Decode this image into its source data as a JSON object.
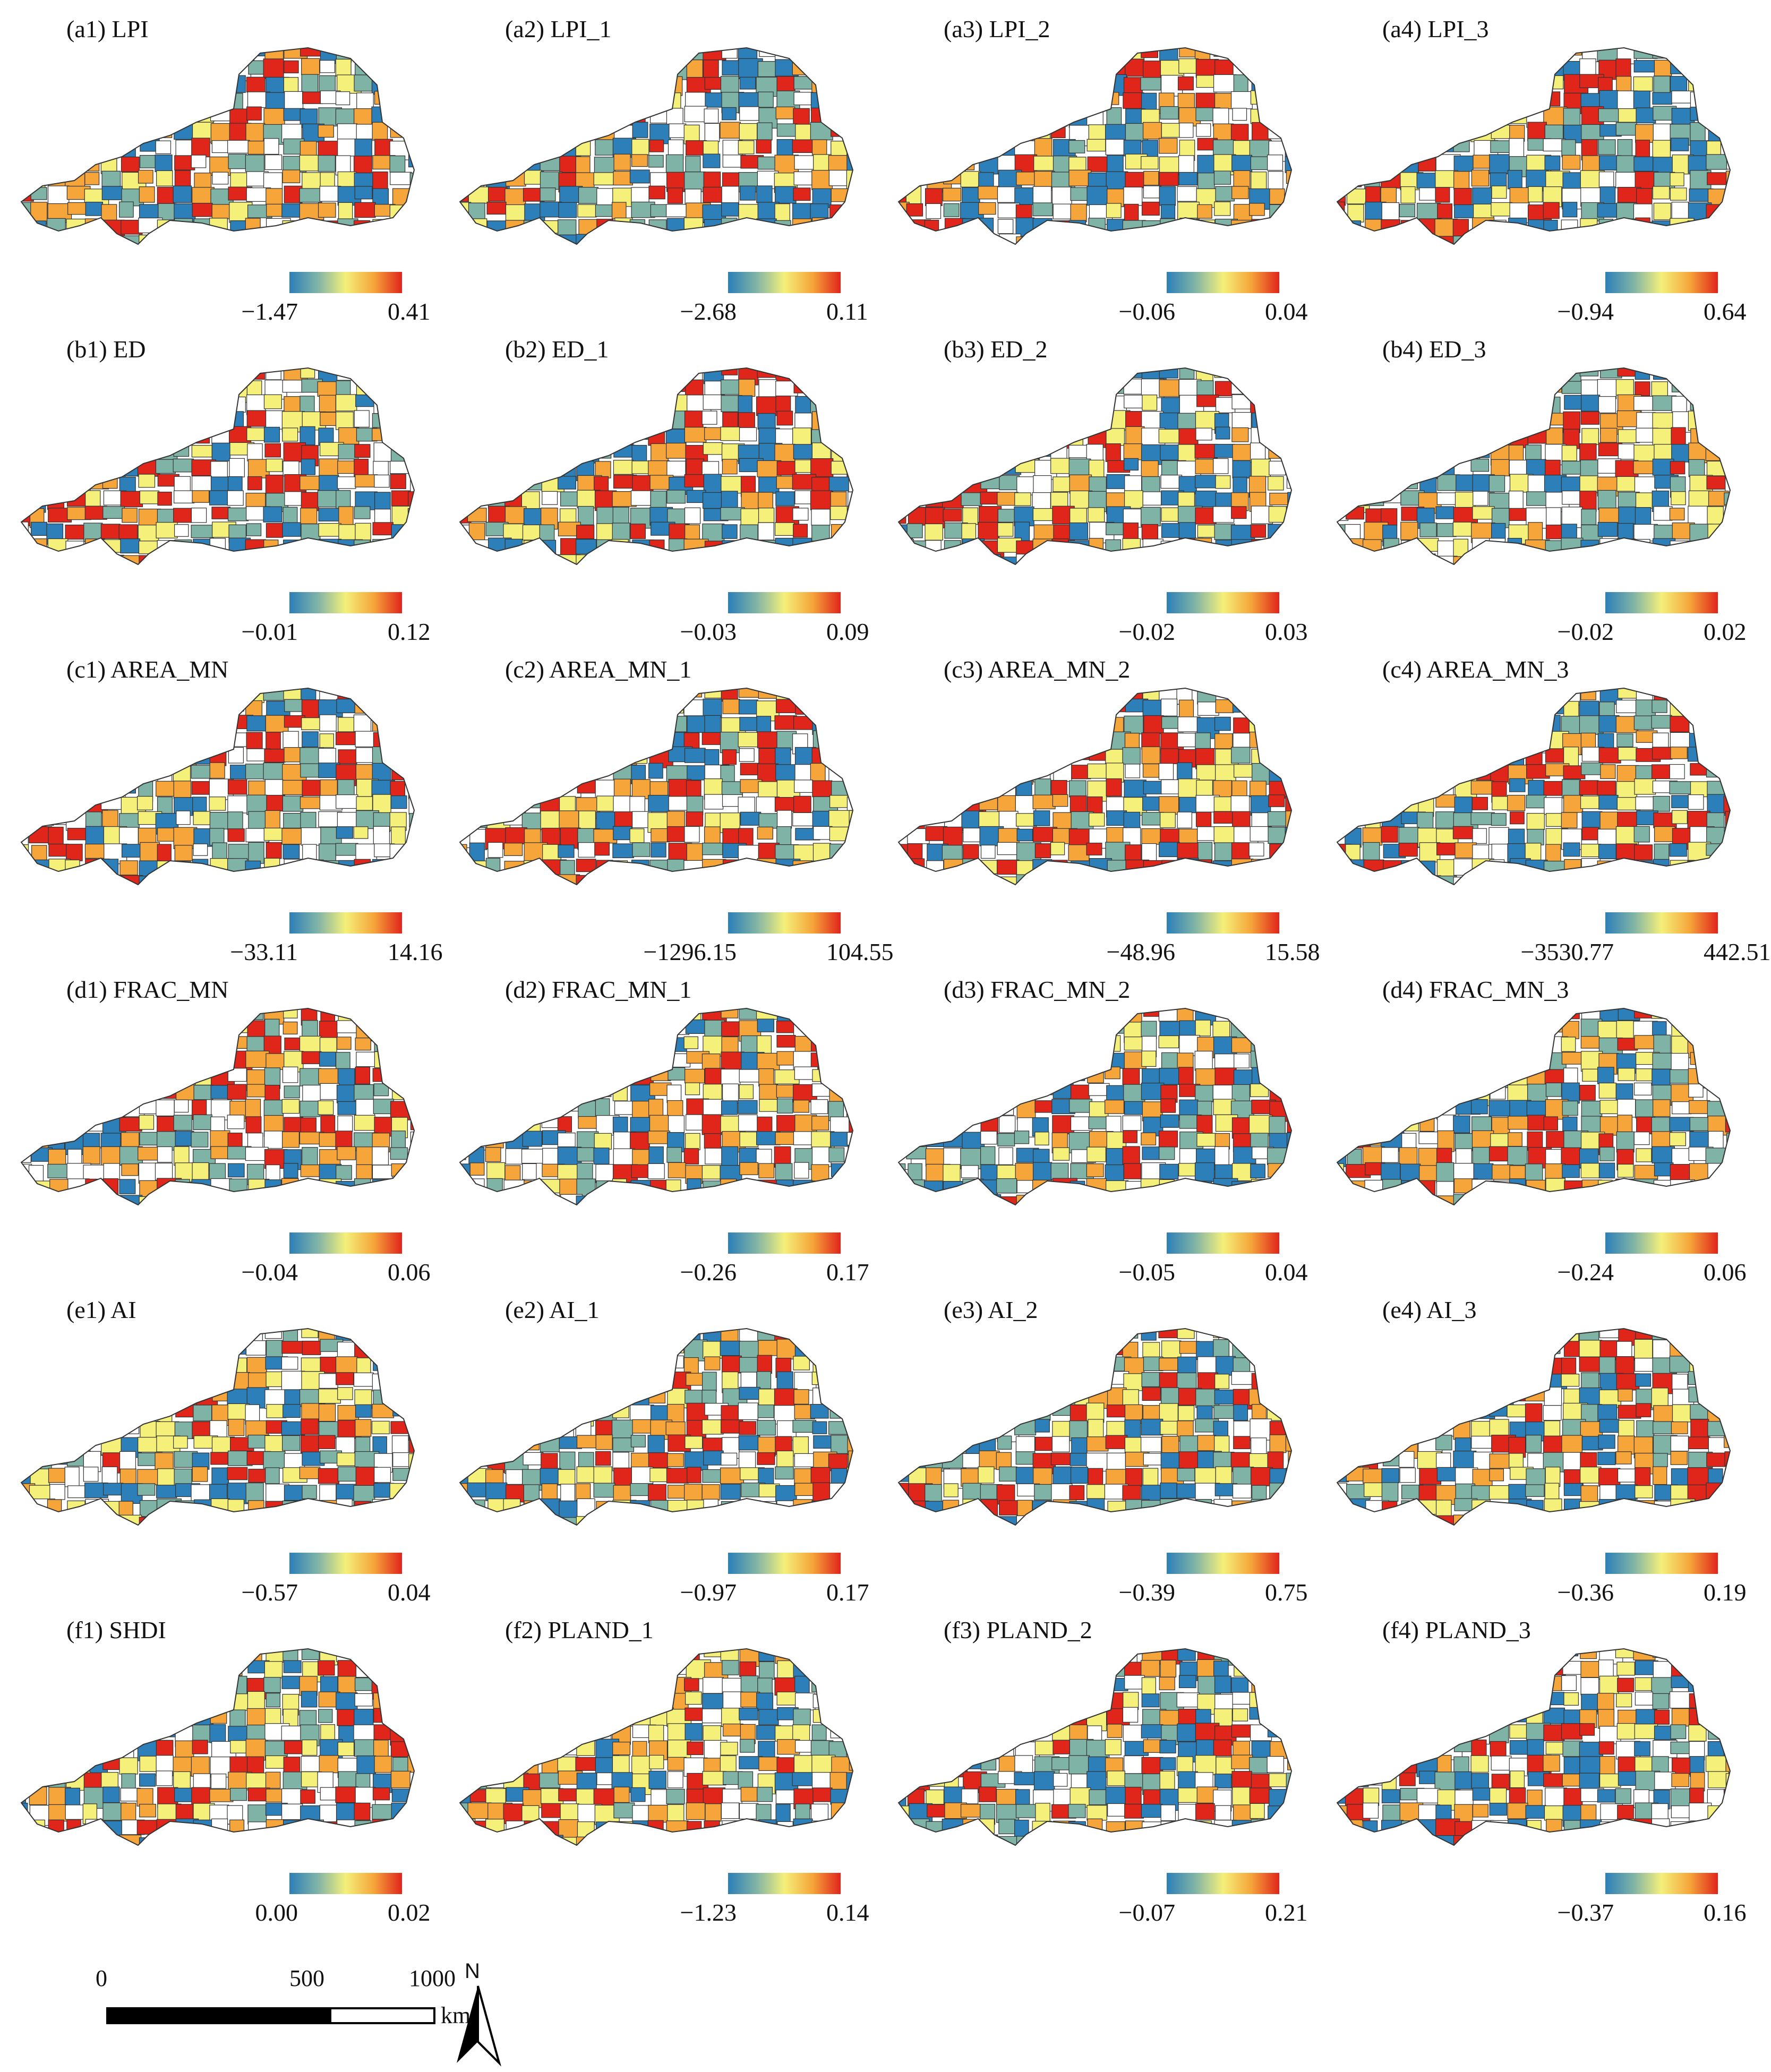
{
  "panels": [
    {
      "title": "(a1) LPI",
      "min": "−1.47",
      "max": "0.41"
    },
    {
      "title": "(a2) LPI_1",
      "min": "−2.68",
      "max": "0.11"
    },
    {
      "title": "(a3) LPI_2",
      "min": "−0.06",
      "max": "0.04"
    },
    {
      "title": "(a4) LPI_3",
      "min": "−0.94",
      "max": "0.64"
    },
    {
      "title": "(b1) ED",
      "min": "−0.01",
      "max": "0.12"
    },
    {
      "title": "(b2) ED_1",
      "min": "−0.03",
      "max": "0.09"
    },
    {
      "title": "(b3) ED_2",
      "min": "−0.02",
      "max": "0.03"
    },
    {
      "title": "(b4) ED_3",
      "min": "−0.02",
      "max": "0.02"
    },
    {
      "title": "(c1) AREA_MN",
      "min": "−33.11",
      "max": "14.16"
    },
    {
      "title": "(c2) AREA_MN_1",
      "min": "−1296.15",
      "max": "104.55"
    },
    {
      "title": "(c3) AREA_MN_2",
      "min": "−48.96",
      "max": "15.58"
    },
    {
      "title": "(c4) AREA_MN_3",
      "min": "−3530.77",
      "max": "442.51"
    },
    {
      "title": "(d1) FRAC_MN",
      "min": "−0.04",
      "max": "0.06"
    },
    {
      "title": "(d2) FRAC_MN_1",
      "min": "−0.26",
      "max": "0.17"
    },
    {
      "title": "(d3) FRAC_MN_2",
      "min": "−0.05",
      "max": "0.04"
    },
    {
      "title": "(d4) FRAC_MN_3",
      "min": "−0.24",
      "max": "0.06"
    },
    {
      "title": "(e1) AI",
      "min": "−0.57",
      "max": "0.04"
    },
    {
      "title": "(e2) AI_1",
      "min": "−0.97",
      "max": "0.17"
    },
    {
      "title": "(e3) AI_2",
      "min": "−0.39",
      "max": "0.75"
    },
    {
      "title": "(e4) AI_3",
      "min": "−0.36",
      "max": "0.19"
    },
    {
      "title": "(f1) SHDI",
      "min": "0.00",
      "max": "0.02"
    },
    {
      "title": "(f2) PLAND_1",
      "min": "−1.23",
      "max": "0.14"
    },
    {
      "title": "(f3) PLAND_2",
      "min": "−0.07",
      "max": "0.21"
    },
    {
      "title": "(f4) PLAND_3",
      "min": "−0.37",
      "max": "0.16"
    }
  ],
  "scalebar": {
    "ticks": [
      "0",
      "500",
      "1000"
    ],
    "unit": "km"
  },
  "north_arrow": {
    "label": "N"
  },
  "colors": {
    "low": "#2c7fb8",
    "mid_low": "#7fb3a6",
    "mid": "#f4f07a",
    "mid_high": "#f5a53a",
    "high": "#e0251b",
    "no_data": "#ffffff",
    "boundary": "#333333"
  }
}
